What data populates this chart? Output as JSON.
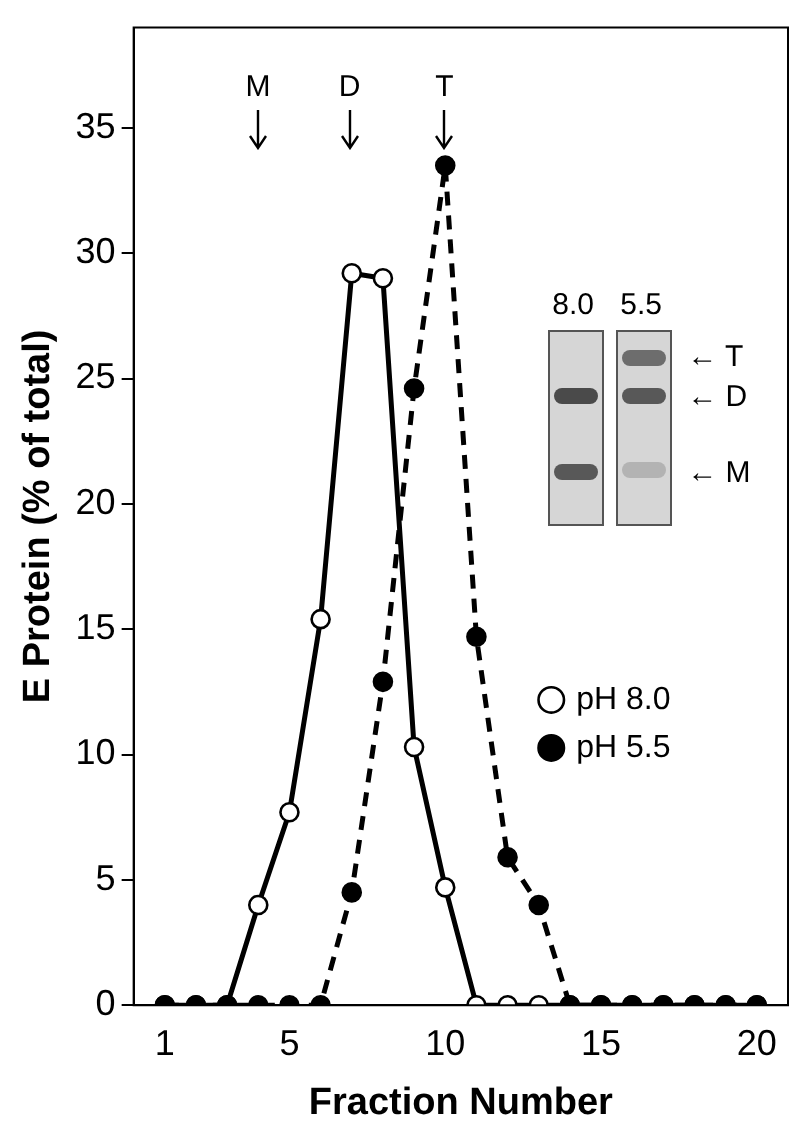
{
  "chart_data": {
    "type": "line",
    "xlabel": "Fraction Number",
    "ylabel": "E Protein (% of total)",
    "x": [
      1,
      2,
      3,
      4,
      5,
      6,
      7,
      8,
      9,
      10,
      11,
      12,
      13,
      14,
      15,
      16,
      17,
      18,
      19,
      20
    ],
    "xlim": [
      0,
      21
    ],
    "xticks": [
      1,
      5,
      10,
      15,
      20
    ],
    "ylim": [
      0,
      39
    ],
    "yticks": [
      0,
      5,
      10,
      15,
      20,
      25,
      30,
      35
    ],
    "grid": false,
    "legend": "right",
    "marker": "circle",
    "series": [
      {
        "name": "pH 8.0",
        "color": "#000000",
        "line_style": "solid",
        "values": [
          0,
          0,
          0,
          4.0,
          7.7,
          15.4,
          29.2,
          29.0,
          10.3,
          4.7,
          0,
          0,
          0,
          0,
          0,
          0,
          0,
          0,
          0,
          0
        ]
      },
      {
        "name": "pH 5.5",
        "color": "#000000",
        "line_style": "dashed",
        "values": [
          0,
          0,
          0,
          0,
          0,
          0,
          4.5,
          12.9,
          24.6,
          33.5,
          14.7,
          5.9,
          4.0,
          0,
          0,
          0,
          0,
          0,
          0,
          0
        ]
      }
    ],
    "annotations": [
      "M",
      "D",
      "T",
      "8.0",
      "5.5",
      "← T",
      "← D",
      "← M"
    ]
  }
}
